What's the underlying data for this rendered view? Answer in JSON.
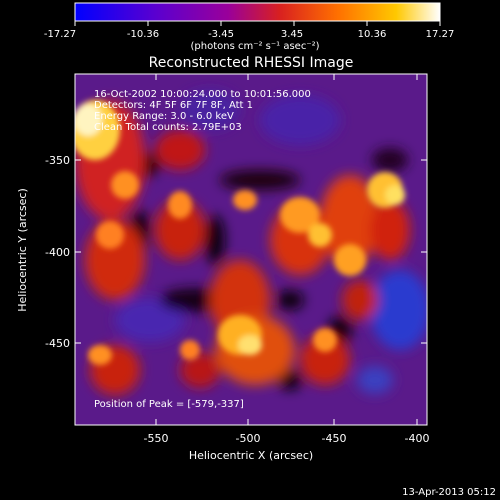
{
  "colorbar": {
    "tick_labels": [
      "-17.27",
      "-10.36",
      "-3.45",
      "3.45",
      "10.36",
      "17.27"
    ],
    "tick_values": [
      -17.27,
      -10.36,
      -3.45,
      3.45,
      10.36,
      17.27
    ],
    "range": [
      -17.27,
      17.27
    ],
    "units": "(photons cm⁻² s⁻¹ asec⁻²)",
    "colors": [
      "#0000ff",
      "#6a00c8",
      "#a000a0",
      "#d82020",
      "#ff8000",
      "#ffd000",
      "#ffffff"
    ]
  },
  "title": "Reconstructed RHESSI Image",
  "annotations": {
    "time_range": "16-Oct-2002 10:00:24.000 to 10:01:56.000",
    "detectors": "Detectors: 4F 5F 6F 7F 8F, Att 1",
    "energy_range": "Energy Range: 3.0 - 6.0 keV",
    "method_counts": "Clean     Total counts: 2.79E+03",
    "peak_position": "Position of Peak = [-579,-337]"
  },
  "axes": {
    "xlabel": "Heliocentric X (arcsec)",
    "ylabel": "Heliocentric Y (arcsec)",
    "x_tick_labels": [
      "-550",
      "-500",
      "-450",
      "-400"
    ],
    "x_tick_values": [
      -550,
      -500,
      -450,
      -400
    ],
    "y_tick_labels": [
      "-350",
      "-400",
      "-450"
    ],
    "y_tick_values": [
      -350,
      -400,
      -450
    ],
    "xlim": [
      -590,
      -398
    ],
    "ylim": [
      -493,
      -323
    ]
  },
  "footer_timestamp": "13-Apr-2013 05:12"
}
